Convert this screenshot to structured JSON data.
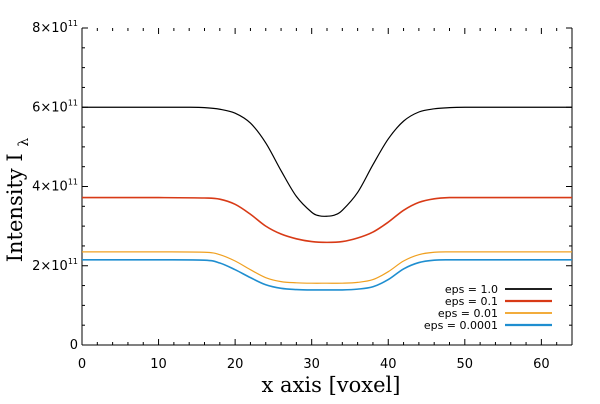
{
  "chart_data": {
    "type": "line",
    "title": "",
    "xlabel": "x axis [voxel]",
    "ylabel_main": "Intensity I",
    "ylabel_sub": "λ",
    "xlim": [
      0,
      64
    ],
    "ylim": [
      0,
      800000000000
    ],
    "x_ticks": [
      0,
      10,
      20,
      30,
      40,
      50,
      60
    ],
    "y_ticks": [
      {
        "value": 0,
        "base": "0",
        "exp": ""
      },
      {
        "value": 200000000000,
        "base": "2×10",
        "exp": "11"
      },
      {
        "value": 400000000000,
        "base": "4×10",
        "exp": "11"
      },
      {
        "value": 600000000000,
        "base": "6×10",
        "exp": "11"
      },
      {
        "value": 800000000000,
        "base": "8×10",
        "exp": "11"
      }
    ],
    "grid": false,
    "legend_position": "bottom-right",
    "series": [
      {
        "name": "eps = 1.0",
        "color": "#000000",
        "line_width": 1.2,
        "x": [
          0,
          5,
          10,
          14,
          16,
          18,
          20,
          22,
          24,
          26,
          28,
          30,
          31,
          32,
          33,
          34,
          36,
          38,
          40,
          42,
          44,
          46,
          48,
          50,
          55,
          60,
          64
        ],
        "y": [
          600000000000,
          600000000000,
          600000000000,
          600000000000,
          599000000000,
          595000000000,
          585000000000,
          560000000000,
          510000000000,
          440000000000,
          375000000000,
          335000000000,
          326000000000,
          325000000000,
          328000000000,
          340000000000,
          385000000000,
          455000000000,
          520000000000,
          565000000000,
          588000000000,
          596000000000,
          599000000000,
          600000000000,
          600000000000,
          600000000000,
          600000000000
        ]
      },
      {
        "name": "eps = 0.1",
        "color": "#d83a16",
        "line_width": 1.6,
        "x": [
          0,
          5,
          10,
          16,
          18,
          20,
          22,
          24,
          26,
          28,
          30,
          32,
          34,
          36,
          38,
          40,
          42,
          44,
          46,
          48,
          50,
          55,
          60,
          64
        ],
        "y": [
          372000000000,
          372000000000,
          372000000000,
          371000000000,
          368000000000,
          355000000000,
          330000000000,
          300000000000,
          280000000000,
          268000000000,
          261000000000,
          259000000000,
          261000000000,
          270000000000,
          285000000000,
          310000000000,
          340000000000,
          360000000000,
          369000000000,
          372000000000,
          372000000000,
          372000000000,
          372000000000,
          372000000000
        ]
      },
      {
        "name": "eps = 0.01",
        "color": "#f0a020",
        "line_width": 1.2,
        "x": [
          0,
          5,
          10,
          16,
          18,
          20,
          22,
          24,
          26,
          28,
          30,
          32,
          34,
          36,
          38,
          40,
          42,
          44,
          46,
          48,
          50,
          55,
          60,
          64
        ],
        "y": [
          235000000000,
          235000000000,
          235000000000,
          234000000000,
          228000000000,
          212000000000,
          190000000000,
          170000000000,
          160000000000,
          157000000000,
          156000000000,
          156000000000,
          156000000000,
          158000000000,
          165000000000,
          185000000000,
          212000000000,
          228000000000,
          234000000000,
          235000000000,
          235000000000,
          235000000000,
          235000000000,
          235000000000
        ]
      },
      {
        "name": "eps = 0.0001",
        "color": "#1f8ed0",
        "line_width": 1.6,
        "x": [
          0,
          5,
          10,
          16,
          18,
          20,
          22,
          24,
          26,
          28,
          30,
          32,
          34,
          36,
          38,
          40,
          42,
          44,
          46,
          48,
          50,
          55,
          60,
          64
        ],
        "y": [
          215000000000,
          215000000000,
          215000000000,
          214000000000,
          207000000000,
          190000000000,
          170000000000,
          152000000000,
          143000000000,
          140000000000,
          139000000000,
          139000000000,
          139000000000,
          141000000000,
          147000000000,
          165000000000,
          192000000000,
          208000000000,
          214000000000,
          215000000000,
          215000000000,
          215000000000,
          215000000000,
          215000000000
        ]
      }
    ]
  }
}
